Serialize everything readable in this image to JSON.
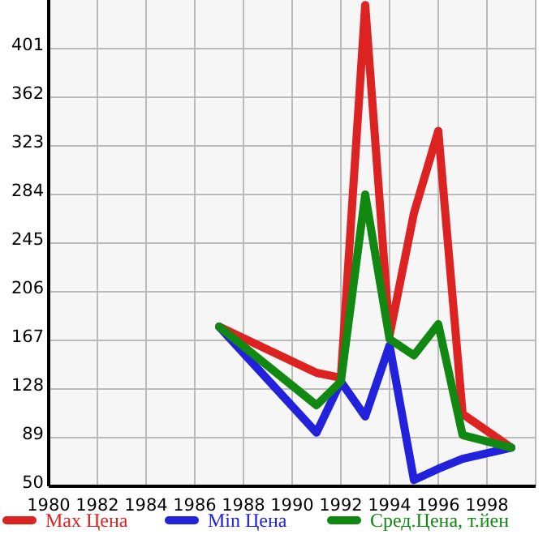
{
  "chart_data": {
    "type": "line",
    "x": [
      1987,
      1991,
      1992,
      1993,
      1994,
      1995,
      1996,
      1997,
      1999
    ],
    "series": [
      {
        "name": "Max Цена",
        "color": "#dd2222",
        "values": [
          178,
          141,
          137,
          436,
          171,
          269,
          335,
          108,
          81
        ]
      },
      {
        "name": "Min Цена",
        "color": "#2222dd",
        "values": [
          178,
          93,
          134,
          106,
          163,
          55,
          64,
          72,
          81
        ]
      },
      {
        "name": "Сред.Цена, т.йен",
        "color": "#118811",
        "values": [
          178,
          115,
          134,
          284,
          168,
          155,
          180,
          91,
          81
        ]
      }
    ],
    "xlim": [
      1980,
      2000
    ],
    "xticks": [
      1980,
      1982,
      1984,
      1986,
      1988,
      1990,
      1992,
      1994,
      1996,
      1998
    ],
    "ylim": [
      50,
      440
    ],
    "yticks": [
      50,
      89,
      128,
      167,
      206,
      245,
      284,
      323,
      362,
      401
    ],
    "grid": true,
    "legend": "bottom",
    "marker": "none",
    "line_style": "solid"
  }
}
